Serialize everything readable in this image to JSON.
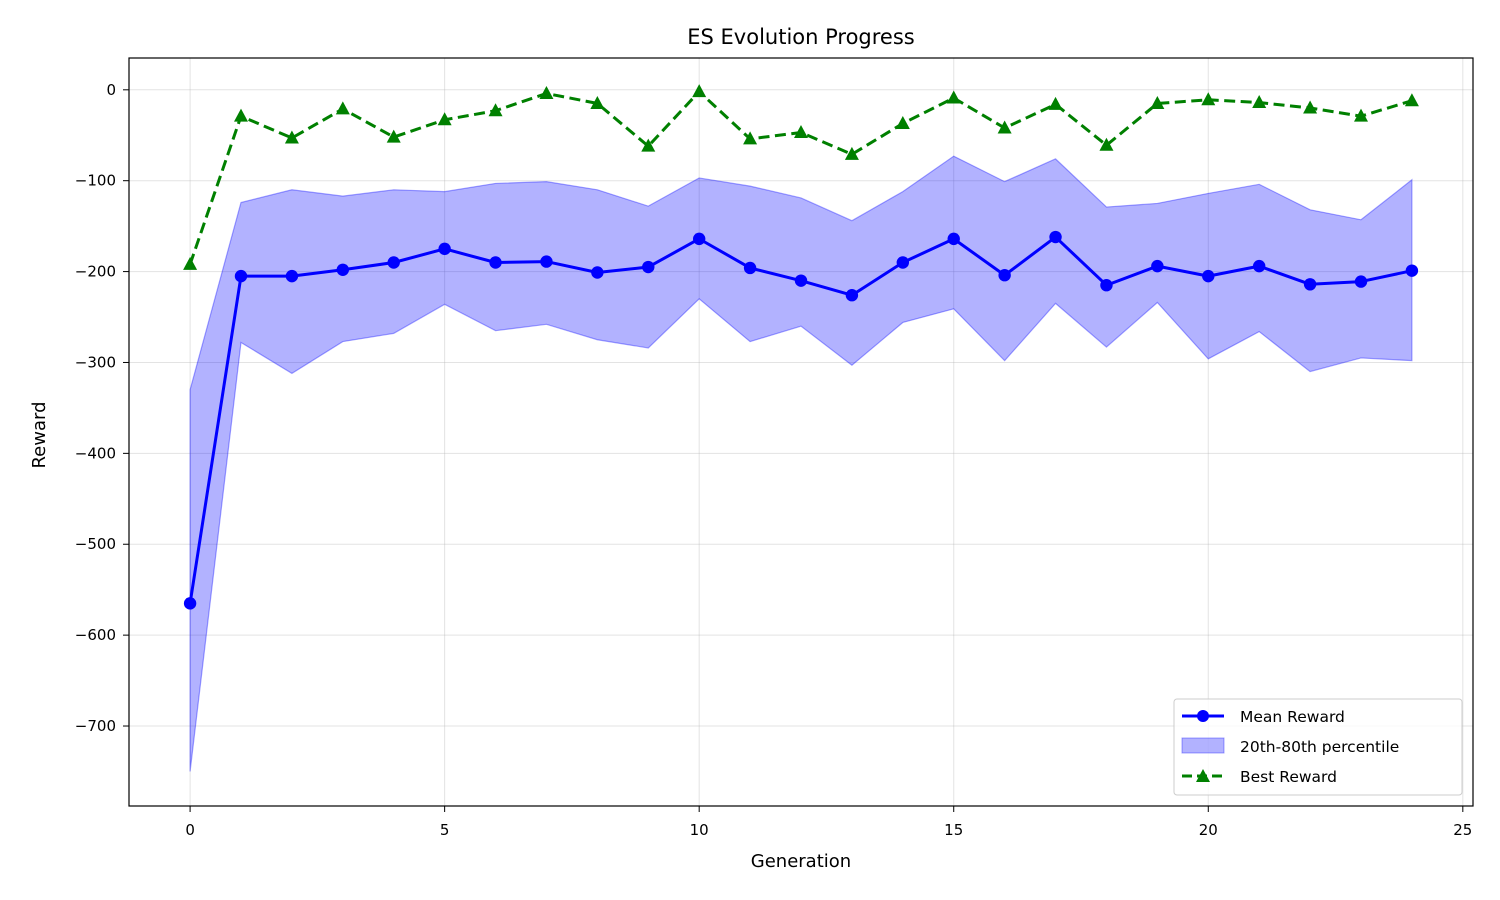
{
  "chart_data": {
    "type": "line",
    "title": "ES Evolution Progress",
    "xlabel": "Generation",
    "ylabel": "Reward",
    "xlim": [
      -1.2,
      25.2
    ],
    "ylim": [
      -788,
      35
    ],
    "xticks": [
      0,
      5,
      10,
      15,
      20,
      25
    ],
    "yticks": [
      0,
      -100,
      -200,
      -300,
      -400,
      -500,
      -600,
      -700
    ],
    "xtick_labels": [
      "0",
      "5",
      "10",
      "15",
      "20",
      "25"
    ],
    "ytick_labels": [
      "0",
      "−100",
      "−200",
      "−300",
      "−400",
      "−500",
      "−600",
      "−700"
    ],
    "grid": true,
    "legend_position": "lower-right",
    "x": [
      0,
      1,
      2,
      3,
      4,
      5,
      6,
      7,
      8,
      9,
      10,
      11,
      12,
      13,
      14,
      15,
      16,
      17,
      18,
      19,
      20,
      21,
      22,
      23,
      24
    ],
    "series": [
      {
        "name": "Mean Reward",
        "kind": "line",
        "color": "#0000ff",
        "marker": "circle",
        "values": [
          -565,
          -205,
          -205,
          -198,
          -190,
          -175,
          -190,
          -189,
          -201,
          -195,
          -164,
          -196,
          -210,
          -226,
          -190,
          -164,
          -204,
          -162,
          -215,
          -194,
          -205,
          -194,
          -214,
          -211,
          -199
        ]
      },
      {
        "name": "20th-80th percentile",
        "kind": "band",
        "color": "#0000ff",
        "lower": [
          -750,
          -278,
          -312,
          -277,
          -268,
          -236,
          -265,
          -258,
          -275,
          -284,
          -230,
          -277,
          -260,
          -303,
          -256,
          -241,
          -298,
          -235,
          -283,
          -234,
          -296,
          -266,
          -310,
          -295,
          -298
        ],
        "upper": [
          -330,
          -124,
          -110,
          -117,
          -110,
          -112,
          -103,
          -101,
          -110,
          -128,
          -97,
          -106,
          -119,
          -144,
          -112,
          -73,
          -101,
          -76,
          -129,
          -125,
          -114,
          -104,
          -132,
          -143,
          -99
        ]
      },
      {
        "name": "Best Reward",
        "kind": "line",
        "color": "#008000",
        "marker": "triangle",
        "dashed": true,
        "values": [
          -192,
          -29,
          -53,
          -21,
          -52,
          -33,
          -23,
          -4,
          -15,
          -62,
          -2,
          -54,
          -47,
          -71,
          -37,
          -9,
          -42,
          -16,
          -61,
          -15,
          -11,
          -14,
          -20,
          -29,
          -12
        ]
      }
    ]
  }
}
